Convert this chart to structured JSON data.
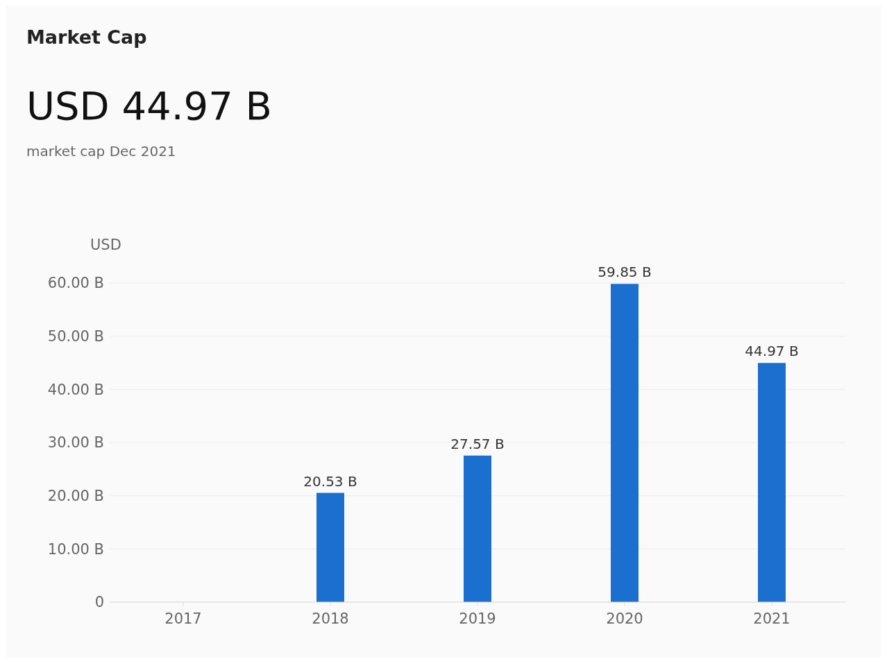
{
  "chart_data": {
    "type": "bar",
    "title": "Market Cap",
    "subtitle": "USD 44.97 B",
    "annotations": [
      "market cap Dec 2021"
    ],
    "ylabel": "USD",
    "categories": [
      "2017",
      "2018",
      "2019",
      "2020",
      "2021"
    ],
    "values": [
      null,
      20.53,
      27.57,
      59.85,
      44.97
    ],
    "value_labels": [
      null,
      "20.53 B",
      "27.57 B",
      "59.85 B",
      "44.97 B"
    ],
    "color": "#1a6fcf",
    "ylim": [
      0,
      60
    ],
    "yticks": [
      {
        "value": 0,
        "label": "0"
      },
      {
        "value": 10,
        "label": "10.00 B"
      },
      {
        "value": 20,
        "label": "20.00 B"
      },
      {
        "value": 30,
        "label": "30.00 B"
      },
      {
        "value": 40,
        "label": "40.00 B"
      },
      {
        "value": 50,
        "label": "50.00 B"
      },
      {
        "value": 60,
        "label": "60.00 B"
      }
    ],
    "grid": "y",
    "legend": false
  }
}
